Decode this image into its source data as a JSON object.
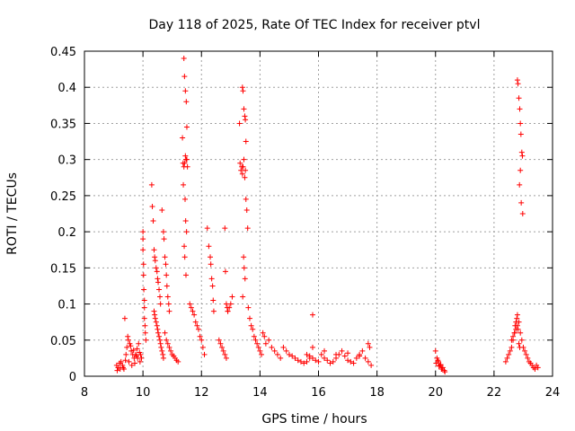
{
  "chart_data": {
    "type": "scatter",
    "title": "Day 118 of 2025, Rate Of TEC Index for receiver ptvl",
    "xlabel": "GPS time / hours",
    "ylabel": "ROTI / TECUs",
    "xlim": [
      8,
      24
    ],
    "ylim": [
      0,
      0.45
    ],
    "xticks": [
      8,
      10,
      12,
      14,
      16,
      18,
      20,
      22,
      24
    ],
    "yticks": [
      0,
      0.05,
      0.1,
      0.15,
      0.2,
      0.25,
      0.3,
      0.35,
      0.4,
      0.45
    ],
    "xtick_labels": [
      "8",
      "10",
      "12",
      "14",
      "16",
      "18",
      "20",
      "22",
      "24"
    ],
    "ytick_labels": [
      "0",
      "0.05",
      "0.1",
      "0.15",
      "0.2",
      "0.25",
      "0.3",
      "0.35",
      "0.4",
      "0.45"
    ],
    "grid": true,
    "marker": "+",
    "color": "#ff0000",
    "series": [
      {
        "name": "ROTI",
        "x": [
          9.1,
          9.15,
          9.2,
          9.25,
          9.3,
          9.35,
          9.4,
          9.45,
          9.5,
          9.55,
          9.6,
          9.65,
          9.7,
          9.75,
          9.8,
          9.85,
          9.9,
          9.95,
          9.12,
          9.22,
          9.32,
          9.42,
          9.52,
          9.62,
          9.72,
          9.82,
          9.92,
          9.38,
          9.48,
          9.58,
          9.68,
          9.78,
          9.88,
          10.0,
          10.0,
          10.0,
          10.02,
          10.02,
          10.03,
          10.05,
          10.05,
          10.05,
          10.07,
          10.08,
          10.1,
          10.3,
          10.32,
          10.35,
          10.38,
          10.4,
          10.42,
          10.45,
          10.48,
          10.5,
          10.52,
          10.55,
          10.58,
          10.6,
          10.38,
          10.4,
          10.42,
          10.45,
          10.48,
          10.5,
          10.52,
          10.55,
          10.58,
          10.6,
          10.62,
          10.65,
          10.68,
          10.7,
          10.75,
          10.8,
          10.85,
          10.9,
          10.95,
          11.0,
          11.05,
          11.1,
          11.15,
          11.2,
          10.65,
          10.7,
          10.72,
          10.75,
          10.78,
          10.8,
          10.82,
          10.85,
          10.88,
          10.9,
          11.35,
          11.37,
          11.4,
          11.42,
          11.45,
          11.47,
          11.5,
          11.52,
          11.4,
          11.42,
          11.45,
          11.48,
          11.5,
          11.38,
          11.44,
          11.46,
          11.49,
          11.41,
          11.43,
          11.47,
          11.6,
          11.65,
          11.7,
          11.75,
          11.8,
          11.85,
          11.9,
          11.95,
          12.0,
          12.05,
          12.1,
          12.2,
          12.25,
          12.3,
          12.32,
          12.35,
          12.38,
          12.4,
          12.42,
          12.6,
          12.65,
          12.7,
          12.75,
          12.8,
          12.85,
          12.9,
          12.95,
          13.0,
          13.05,
          12.8,
          12.82,
          12.85,
          12.88,
          12.9,
          13.3,
          13.32,
          13.35,
          13.38,
          13.4,
          13.42,
          13.45,
          13.48,
          13.5,
          13.52,
          13.4,
          13.42,
          13.45,
          13.48,
          13.5,
          13.52,
          13.55,
          13.58,
          13.44,
          13.46,
          13.49,
          13.41,
          13.6,
          13.65,
          13.7,
          13.75,
          13.8,
          13.85,
          13.9,
          13.95,
          14.0,
          14.05,
          14.1,
          14.15,
          14.2,
          14.3,
          14.4,
          14.5,
          14.6,
          14.7,
          14.8,
          14.9,
          15.0,
          15.1,
          15.2,
          15.3,
          15.4,
          15.5,
          15.6,
          15.7,
          15.8,
          15.6,
          15.7,
          15.8,
          15.9,
          16.0,
          16.1,
          16.2,
          16.3,
          16.4,
          16.5,
          16.6,
          16.7,
          16.8,
          16.9,
          17.0,
          17.1,
          17.2,
          17.3,
          17.4,
          17.5,
          17.6,
          17.7,
          17.8,
          15.8,
          16.2,
          16.6,
          17.0,
          17.4,
          17.7,
          17.75,
          20.0,
          20.05,
          20.1,
          20.15,
          20.2,
          20.25,
          20.3,
          20.02,
          20.12,
          20.22,
          20.32,
          20.08,
          20.18,
          22.4,
          22.45,
          22.5,
          22.55,
          22.6,
          22.65,
          22.7,
          22.75,
          22.8,
          22.85,
          22.9,
          22.95,
          23.0,
          23.05,
          23.1,
          23.15,
          23.2,
          23.25,
          23.3,
          23.35,
          23.4,
          23.45,
          23.5,
          22.6,
          22.65,
          22.7,
          22.72,
          22.75,
          22.78,
          22.8,
          22.82,
          22.85,
          22.88,
          22.8,
          22.82,
          22.85,
          22.88,
          22.9,
          22.92,
          22.95,
          22.97,
          22.9,
          22.87,
          22.93,
          22.98
        ],
        "y": [
          0.015,
          0.012,
          0.018,
          0.02,
          0.015,
          0.01,
          0.022,
          0.04,
          0.05,
          0.045,
          0.035,
          0.03,
          0.025,
          0.03,
          0.038,
          0.045,
          0.02,
          0.025,
          0.008,
          0.01,
          0.012,
          0.03,
          0.02,
          0.015,
          0.018,
          0.025,
          0.03,
          0.08,
          0.055,
          0.042,
          0.036,
          0.028,
          0.033,
          0.2,
          0.19,
          0.175,
          0.155,
          0.14,
          0.12,
          0.105,
          0.095,
          0.08,
          0.07,
          0.06,
          0.05,
          0.265,
          0.235,
          0.215,
          0.175,
          0.165,
          0.16,
          0.15,
          0.145,
          0.135,
          0.13,
          0.12,
          0.11,
          0.1,
          0.09,
          0.085,
          0.08,
          0.075,
          0.07,
          0.065,
          0.06,
          0.055,
          0.05,
          0.045,
          0.04,
          0.035,
          0.03,
          0.025,
          0.06,
          0.05,
          0.045,
          0.04,
          0.035,
          0.03,
          0.028,
          0.025,
          0.022,
          0.02,
          0.23,
          0.2,
          0.19,
          0.165,
          0.155,
          0.14,
          0.125,
          0.11,
          0.1,
          0.09,
          0.33,
          0.295,
          0.29,
          0.295,
          0.305,
          0.3,
          0.3,
          0.29,
          0.44,
          0.415,
          0.395,
          0.38,
          0.345,
          0.265,
          0.245,
          0.215,
          0.2,
          0.18,
          0.165,
          0.14,
          0.1,
          0.095,
          0.09,
          0.085,
          0.075,
          0.07,
          0.065,
          0.055,
          0.05,
          0.04,
          0.03,
          0.205,
          0.18,
          0.165,
          0.155,
          0.135,
          0.125,
          0.105,
          0.09,
          0.05,
          0.045,
          0.04,
          0.035,
          0.03,
          0.025,
          0.09,
          0.095,
          0.1,
          0.11,
          0.205,
          0.145,
          0.1,
          0.095,
          0.09,
          0.35,
          0.295,
          0.285,
          0.29,
          0.28,
          0.29,
          0.3,
          0.275,
          0.285,
          0.245,
          0.4,
          0.395,
          0.37,
          0.36,
          0.355,
          0.325,
          0.23,
          0.205,
          0.165,
          0.15,
          0.135,
          0.11,
          0.095,
          0.08,
          0.07,
          0.065,
          0.055,
          0.05,
          0.045,
          0.04,
          0.035,
          0.03,
          0.06,
          0.055,
          0.045,
          0.05,
          0.04,
          0.035,
          0.03,
          0.025,
          0.04,
          0.035,
          0.03,
          0.028,
          0.025,
          0.022,
          0.02,
          0.018,
          0.02,
          0.025,
          0.085,
          0.03,
          0.028,
          0.025,
          0.022,
          0.02,
          0.03,
          0.025,
          0.022,
          0.018,
          0.02,
          0.025,
          0.03,
          0.035,
          0.028,
          0.022,
          0.02,
          0.018,
          0.025,
          0.03,
          0.035,
          0.025,
          0.02,
          0.015,
          0.04,
          0.035,
          0.03,
          0.032,
          0.028,
          0.045,
          0.04,
          0.035,
          0.025,
          0.02,
          0.015,
          0.01,
          0.012,
          0.008,
          0.018,
          0.014,
          0.01,
          0.006,
          0.022,
          0.016,
          0.02,
          0.025,
          0.03,
          0.035,
          0.04,
          0.05,
          0.06,
          0.065,
          0.07,
          0.075,
          0.06,
          0.05,
          0.04,
          0.035,
          0.03,
          0.025,
          0.02,
          0.018,
          0.015,
          0.012,
          0.01,
          0.015,
          0.012,
          0.05,
          0.055,
          0.06,
          0.07,
          0.075,
          0.08,
          0.085,
          0.065,
          0.045,
          0.04,
          0.41,
          0.405,
          0.385,
          0.37,
          0.35,
          0.335,
          0.31,
          0.305,
          0.285,
          0.265,
          0.24,
          0.225
        ]
      }
    ]
  }
}
